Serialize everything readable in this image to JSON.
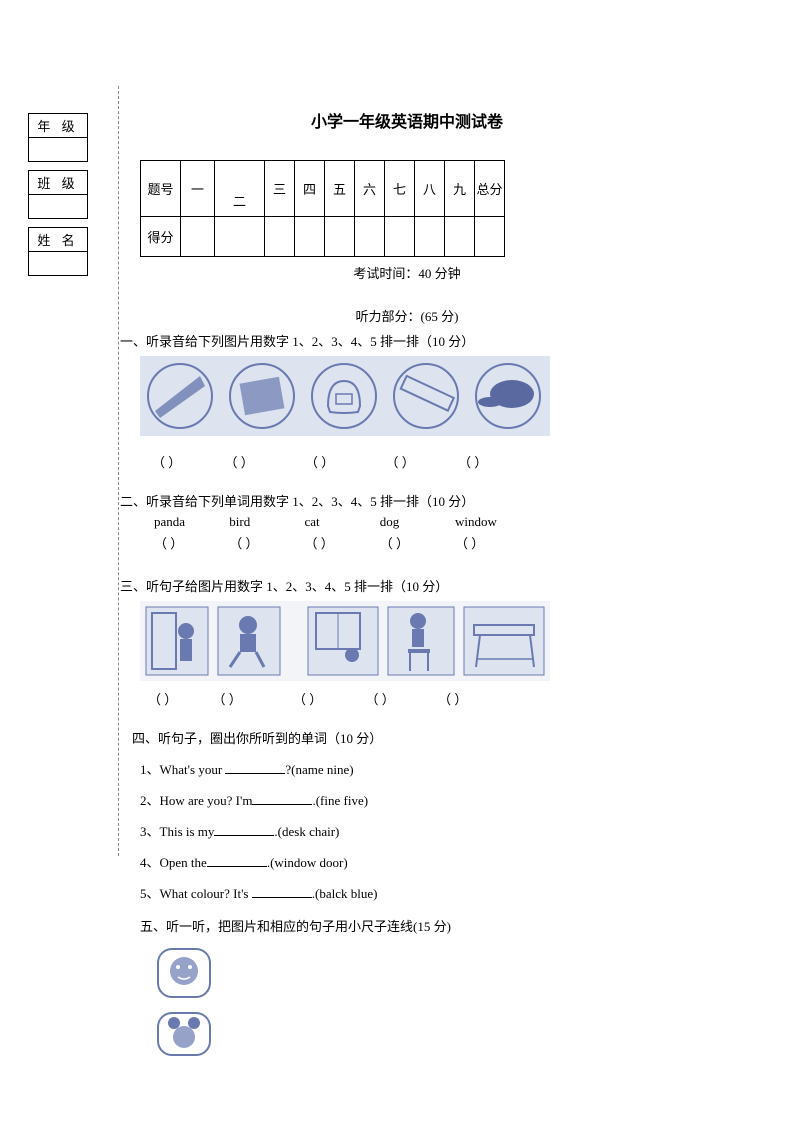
{
  "info": {
    "grade": "年 级",
    "class": "班 级",
    "name": "姓 名"
  },
  "title": "小学一年级英语期中测试卷",
  "score_table": {
    "row_label_1": "题号",
    "row_label_2": "得分",
    "cols": [
      "一",
      "二",
      "三",
      "四",
      "五",
      "六",
      "七",
      "八",
      "九",
      "总分"
    ]
  },
  "exam_time": "考试时间：40 分钟",
  "listening_header": "听力部分：(65 分)",
  "q1": {
    "title": "一、听录音给下列图片用数字 1、2、3、4、5 排一排（10 分）",
    "brackets": [
      "（   ）",
      "（   ）",
      "（   ）",
      "（   ）",
      "（   ）"
    ]
  },
  "q2": {
    "title": "二、听录音给下列单词用数字 1、2、3、4、5 排一排（10 分）",
    "words": [
      "panda",
      "bird",
      "cat",
      "dog",
      "window"
    ],
    "brackets": [
      "（   ）",
      "（   ）",
      "（   ）",
      "（   ）",
      "（   ）"
    ]
  },
  "q3": {
    "title": "三、听句子给图片用数字 1、2、3、4、5 排一排（10 分）",
    "brackets": [
      "（   ）",
      "（   ）",
      "（   ）",
      "（   ）",
      "（   ）"
    ]
  },
  "q4": {
    "title": "四、听句子，圈出你所听到的单词（10 分）",
    "items": [
      {
        "n": "1、",
        "pre": "What's your ",
        "post": "?(name      nine)"
      },
      {
        "n": "2、",
        "pre": "How are you? I'm",
        "post": ".(fine      five)"
      },
      {
        "n": "3、",
        "pre": "This is my",
        "post": ".(desk      chair)"
      },
      {
        "n": "4、",
        "pre": "Open the",
        "post": ".(window      door)"
      },
      {
        "n": "5、",
        "pre": "What colour? It's ",
        "post": ".(balck      blue)"
      }
    ]
  },
  "q5": {
    "title": "五、听一听，把图片和相应的句子用小尺子连线(15 分)"
  },
  "colors": {
    "text": "#000000",
    "bg": "#ffffff",
    "img_blue": "#6a7ab0",
    "img_bg": "#dde4ef",
    "dashed": "#888888"
  }
}
